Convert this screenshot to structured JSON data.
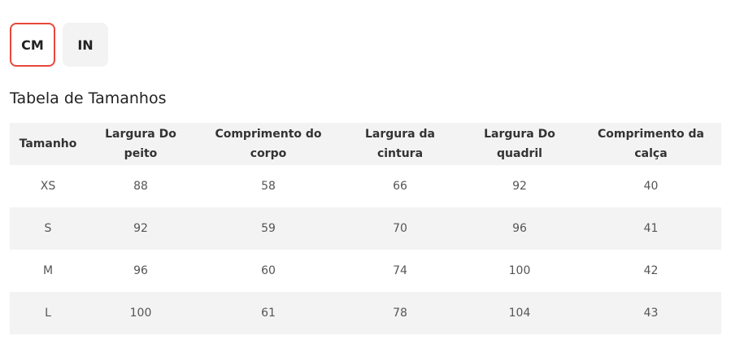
{
  "unit_toggle": {
    "options": [
      "CM",
      "IN"
    ],
    "selected": "CM",
    "accent_color": "#e8473b"
  },
  "title": "Tabela de Tamanhos",
  "table": {
    "headers": [
      "Tamanho",
      "Largura Do peito",
      "Comprimento do corpo",
      "Largura da cintura",
      "Largura Do quadril",
      "Comprimento da calça"
    ],
    "rows": [
      [
        "XS",
        "88",
        "58",
        "66",
        "92",
        "40"
      ],
      [
        "S",
        "92",
        "59",
        "70",
        "96",
        "41"
      ],
      [
        "M",
        "96",
        "60",
        "74",
        "100",
        "42"
      ],
      [
        "L",
        "100",
        "61",
        "78",
        "104",
        "43"
      ]
    ]
  }
}
